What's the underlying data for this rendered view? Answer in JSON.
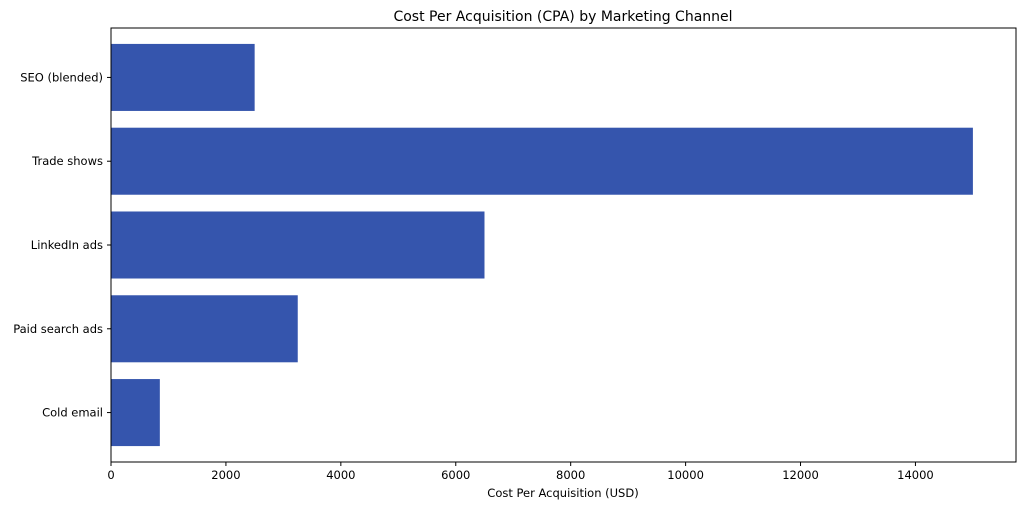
{
  "chart_data": {
    "type": "bar",
    "orientation": "horizontal",
    "title": "Cost Per Acquisition (CPA) by Marketing Channel",
    "xlabel": "Cost Per Acquisition (USD)",
    "ylabel": "",
    "categories": [
      "Cold email",
      "Paid search ads",
      "LinkedIn ads",
      "Trade shows",
      "SEO (blended)"
    ],
    "values": [
      850,
      3250,
      6500,
      15000,
      2500
    ],
    "xlim": [
      0,
      15750
    ],
    "xticks": [
      0,
      2000,
      4000,
      6000,
      8000,
      10000,
      12000,
      14000
    ],
    "grid": false,
    "bar_color": "#3555ad"
  }
}
